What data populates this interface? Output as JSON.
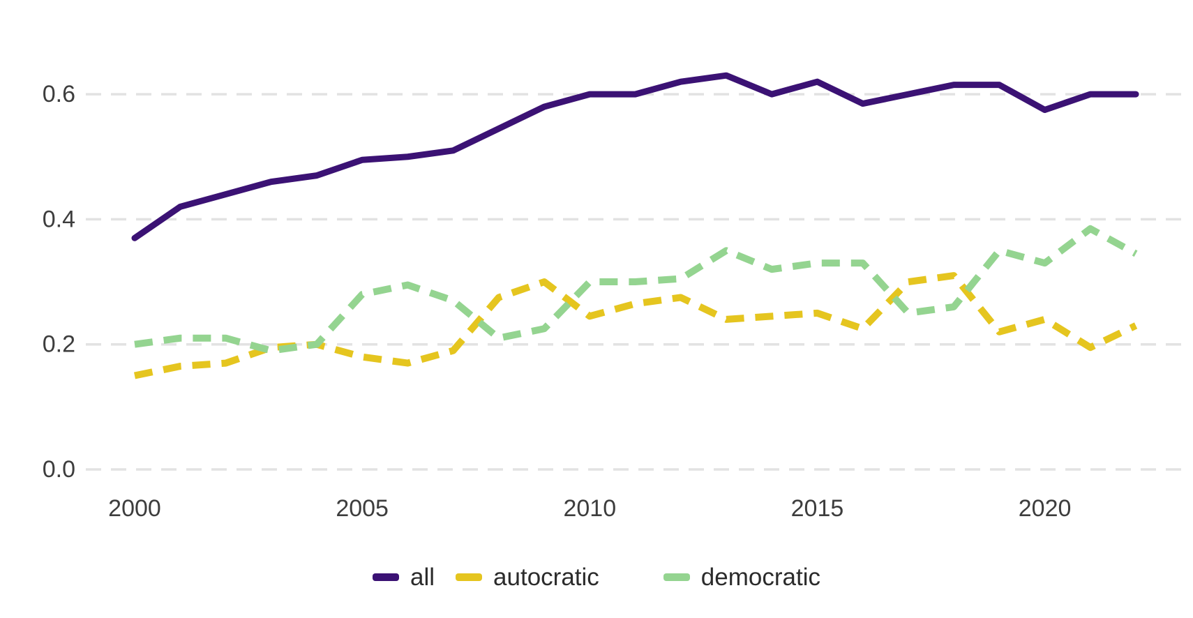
{
  "chart_data": {
    "type": "line",
    "title": "",
    "xlabel": "",
    "ylabel": "",
    "x": [
      2000,
      2001,
      2002,
      2003,
      2004,
      2005,
      2006,
      2007,
      2008,
      2009,
      2010,
      2011,
      2012,
      2013,
      2014,
      2015,
      2016,
      2017,
      2018,
      2019,
      2020,
      2021,
      2022
    ],
    "series": [
      {
        "name": "all",
        "color": "#3b1274",
        "style": "solid",
        "values": [
          0.37,
          0.42,
          0.44,
          0.46,
          0.47,
          0.495,
          0.5,
          0.51,
          0.545,
          0.58,
          0.6,
          0.6,
          0.62,
          0.63,
          0.6,
          0.62,
          0.585,
          0.6,
          0.615,
          0.615,
          0.575,
          0.6,
          0.6
        ]
      },
      {
        "name": "autocratic",
        "color": "#e5c51f",
        "style": "dashed",
        "values": [
          0.15,
          0.165,
          0.17,
          0.195,
          0.2,
          0.18,
          0.17,
          0.19,
          0.275,
          0.3,
          0.245,
          0.265,
          0.275,
          0.24,
          0.245,
          0.25,
          0.225,
          0.3,
          0.31,
          0.22,
          0.24,
          0.195,
          0.23
        ]
      },
      {
        "name": "democratic",
        "color": "#94d490",
        "style": "dashed",
        "values": [
          0.2,
          0.21,
          0.21,
          0.19,
          0.2,
          0.28,
          0.295,
          0.27,
          0.21,
          0.225,
          0.3,
          0.3,
          0.305,
          0.35,
          0.32,
          0.33,
          0.33,
          0.25,
          0.26,
          0.35,
          0.33,
          0.385,
          0.345
        ]
      }
    ],
    "x_ticks": [
      2000,
      2005,
      2010,
      2015,
      2020
    ],
    "y_ticks": [
      "0.0",
      "0.2",
      "0.4",
      "0.6"
    ],
    "ylim": [
      0,
      0.7
    ],
    "grid": "horizontal-dashed",
    "legend_position": "bottom-center",
    "grid_color": "#e2e2e2",
    "tick_label_color": "#3d3d3d"
  }
}
